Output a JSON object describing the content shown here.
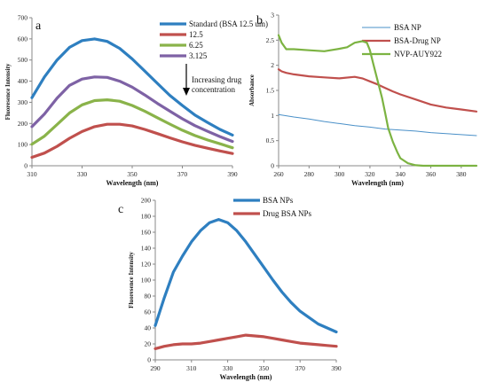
{
  "chart_data": [
    {
      "type": "line",
      "panel_label": "a",
      "title": "",
      "xlabel": "Wavelength (nm)",
      "ylabel": "Fluoresence Intensity",
      "xlim": [
        310,
        390
      ],
      "ylim": [
        0,
        700
      ],
      "x_ticks": [
        310,
        330,
        350,
        370,
        390
      ],
      "y_ticks": [
        0,
        100,
        200,
        300,
        400,
        500,
        600,
        700
      ],
      "grid": false,
      "legend_position": "top-right",
      "annotation": [
        "Increasing drug",
        "concentration"
      ],
      "series": [
        {
          "name": "Standard (BSA 12.5 um)",
          "color": "#2e7fc0",
          "x": [
            310,
            315,
            320,
            325,
            330,
            335,
            340,
            345,
            350,
            355,
            360,
            365,
            370,
            375,
            380,
            385,
            390
          ],
          "y": [
            322,
            420,
            500,
            560,
            592,
            600,
            588,
            555,
            505,
            448,
            390,
            333,
            285,
            240,
            205,
            172,
            145
          ]
        },
        {
          "name": "12.5",
          "color": "#c0504d",
          "x": [
            310,
            315,
            320,
            325,
            330,
            335,
            340,
            345,
            350,
            355,
            360,
            365,
            370,
            375,
            380,
            385,
            390
          ],
          "y": [
            40,
            60,
            92,
            130,
            162,
            185,
            196,
            196,
            188,
            172,
            152,
            132,
            113,
            97,
            83,
            70,
            58
          ]
        },
        {
          "name": "6.25",
          "color": "#8ab34a",
          "x": [
            310,
            315,
            320,
            325,
            330,
            335,
            340,
            345,
            350,
            355,
            360,
            365,
            370,
            375,
            380,
            385,
            390
          ],
          "y": [
            102,
            140,
            195,
            250,
            288,
            308,
            312,
            305,
            285,
            258,
            227,
            197,
            168,
            143,
            122,
            104,
            85
          ]
        },
        {
          "name": "3.125",
          "color": "#7e62a5",
          "x": [
            310,
            315,
            320,
            325,
            330,
            335,
            340,
            345,
            350,
            355,
            360,
            365,
            370,
            375,
            380,
            385,
            390
          ],
          "y": [
            185,
            245,
            320,
            380,
            410,
            420,
            418,
            400,
            372,
            335,
            295,
            258,
            222,
            190,
            163,
            138,
            115
          ]
        }
      ]
    },
    {
      "type": "line",
      "panel_label": "b",
      "title": "",
      "xlabel": "Wavelength (nm)",
      "ylabel": "Absorbance",
      "xlim": [
        260,
        390
      ],
      "ylim": [
        0,
        3
      ],
      "x_ticks": [
        260,
        280,
        300,
        320,
        340,
        360,
        380
      ],
      "y_ticks": [
        0,
        0.5,
        1,
        1.5,
        2,
        2.5,
        3
      ],
      "grid": false,
      "legend_position": "top-right",
      "series": [
        {
          "name": "BSA NP",
          "color": "#4a90c8",
          "x": [
            260,
            270,
            280,
            290,
            300,
            310,
            320,
            330,
            340,
            350,
            360,
            370,
            380,
            390
          ],
          "y": [
            1.02,
            0.97,
            0.93,
            0.88,
            0.84,
            0.8,
            0.77,
            0.73,
            0.71,
            0.69,
            0.66,
            0.64,
            0.62,
            0.6
          ]
        },
        {
          "name": "BSA-Drug NP",
          "color": "#c0504d",
          "x": [
            260,
            262,
            265,
            270,
            280,
            290,
            300,
            310,
            315,
            320,
            325,
            330,
            335,
            340,
            350,
            360,
            370,
            380,
            390
          ],
          "y": [
            1.92,
            1.88,
            1.85,
            1.82,
            1.78,
            1.76,
            1.74,
            1.77,
            1.74,
            1.68,
            1.62,
            1.55,
            1.48,
            1.42,
            1.32,
            1.22,
            1.16,
            1.12,
            1.08
          ]
        },
        {
          "name": "NVP-AUY922",
          "color": "#7cb342",
          "x": [
            260,
            262,
            265,
            270,
            280,
            290,
            300,
            305,
            310,
            315,
            318,
            320,
            322,
            325,
            328,
            330,
            332,
            335,
            338,
            340,
            345,
            350,
            355,
            360,
            370,
            380,
            390
          ],
          "y": [
            2.6,
            2.45,
            2.32,
            2.32,
            2.3,
            2.28,
            2.33,
            2.36,
            2.45,
            2.48,
            2.45,
            2.3,
            2.05,
            1.7,
            1.35,
            1.05,
            0.75,
            0.48,
            0.27,
            0.15,
            0.05,
            0.01,
            0.0,
            0.0,
            0.0,
            0.0,
            0.0
          ]
        }
      ]
    },
    {
      "type": "line",
      "panel_label": "c",
      "title": "",
      "xlabel": "Wavelength (nm)",
      "ylabel": "Fluoresence Intensity",
      "xlim": [
        290,
        390
      ],
      "ylim": [
        0,
        200
      ],
      "x_ticks": [
        290,
        310,
        330,
        350,
        370,
        390
      ],
      "y_ticks": [
        0,
        20,
        40,
        60,
        80,
        100,
        120,
        140,
        160,
        180,
        200
      ],
      "grid": false,
      "legend_position": "top-right",
      "series": [
        {
          "name": "BSA NPs",
          "color": "#2e7fc0",
          "x": [
            290,
            295,
            300,
            305,
            310,
            315,
            320,
            325,
            330,
            335,
            340,
            345,
            350,
            355,
            360,
            365,
            370,
            375,
            380,
            385,
            390
          ],
          "y": [
            43,
            78,
            110,
            130,
            148,
            162,
            172,
            176,
            172,
            162,
            148,
            132,
            116,
            100,
            85,
            72,
            61,
            53,
            45,
            40,
            35
          ]
        },
        {
          "name": "Drug BSA NPs",
          "color": "#c0504d",
          "x": [
            290,
            295,
            300,
            305,
            310,
            315,
            320,
            325,
            330,
            335,
            340,
            345,
            350,
            355,
            360,
            365,
            370,
            375,
            380,
            385,
            390
          ],
          "y": [
            14,
            17,
            19,
            20,
            20,
            21,
            23,
            25,
            27,
            29,
            31,
            30,
            29,
            27,
            25,
            23,
            21,
            20,
            19,
            18,
            17
          ]
        }
      ]
    }
  ]
}
